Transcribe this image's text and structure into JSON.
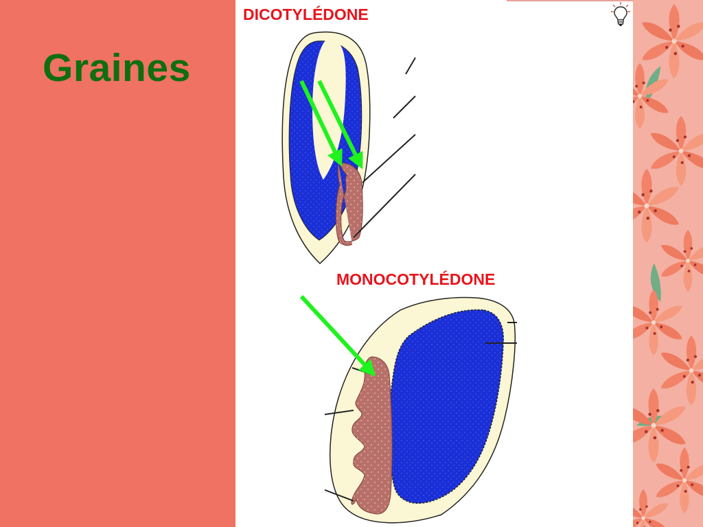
{
  "slide": {
    "title": "Graines"
  },
  "diagrams": {
    "dicot": {
      "label": "DICOTYLÉDONE"
    },
    "monocot": {
      "label": "MONOCOTYLÉDONE"
    }
  },
  "colors": {
    "background": "#ef7262",
    "title": "#0f6e0f",
    "label": "#e8141c",
    "cotyledon": "#1a2fd6",
    "embryo": "#b8706a",
    "seed_coat": "#fbf6d3",
    "arrow": "#1ff21f"
  },
  "icons": {
    "hint": "lightbulb-icon",
    "decoration": "lily-flower-pattern"
  }
}
